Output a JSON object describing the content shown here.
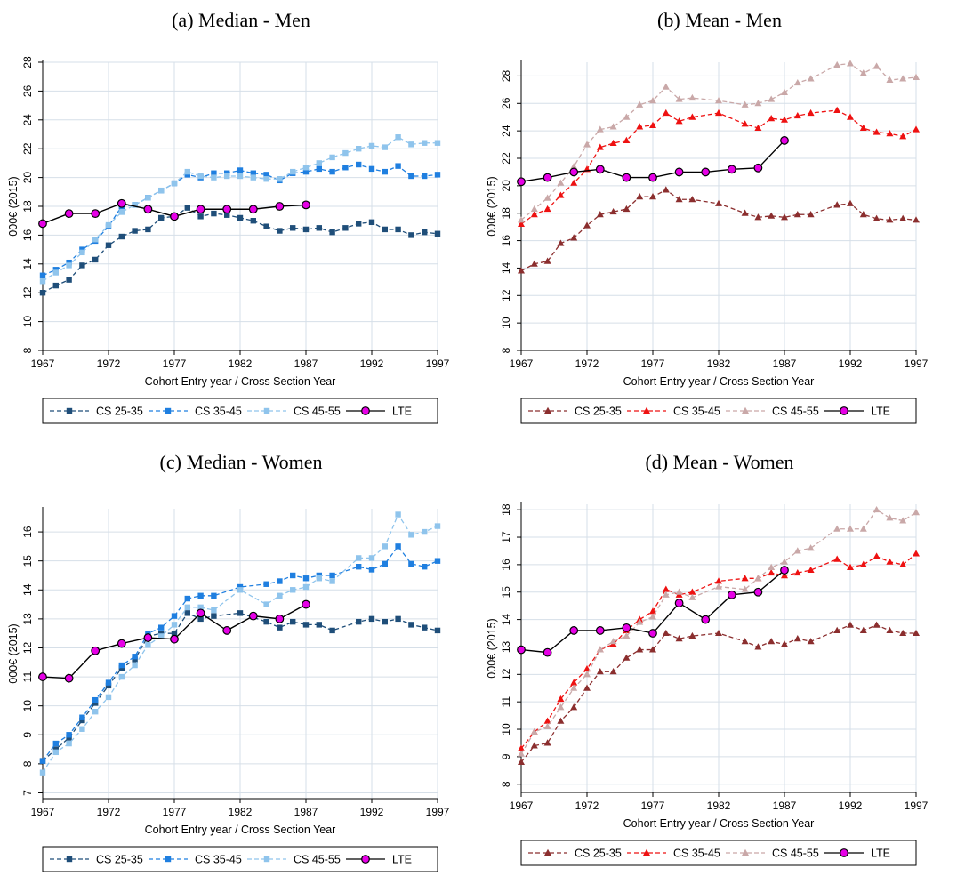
{
  "chart_data": [
    {
      "type": "line",
      "title": "(a) Median - Men",
      "xlabel": "Cohort Entry year / Cross Section Year",
      "ylabel": "000€ (2015)",
      "xlim": [
        1967,
        1997
      ],
      "ylim": [
        8,
        28
      ],
      "xticks": [
        1967,
        1972,
        1977,
        1982,
        1987,
        1992,
        1997
      ],
      "yticks": [
        8,
        10,
        12,
        14,
        16,
        18,
        20,
        22,
        24,
        26,
        28
      ],
      "grid": true,
      "legend_position": "bottom",
      "colors": {
        "CS 25-35": "#1f4e79",
        "CS 35-45": "#1f7fe0",
        "CS 45-55": "#8fc4ec",
        "LTE": "#000000",
        "LTE_fill": "#e600e6"
      },
      "series": [
        {
          "name": "CS 25-35",
          "marker": "square",
          "dash": true,
          "x": [
            1967,
            1968,
            1969,
            1970,
            1971,
            1972,
            1973,
            1974,
            1975,
            1976,
            1977,
            1978,
            1979,
            1980,
            1981,
            1982,
            1983,
            1984,
            1985,
            1986,
            1987,
            1988,
            1989,
            1990,
            1991,
            1992,
            1993,
            1994,
            1995,
            1996,
            1997
          ],
          "y": [
            12.0,
            12.5,
            12.9,
            13.9,
            14.3,
            15.3,
            15.9,
            16.3,
            16.4,
            17.2,
            17.3,
            17.9,
            17.3,
            17.5,
            17.4,
            17.2,
            17.0,
            16.6,
            16.3,
            16.5,
            16.4,
            16.5,
            16.2,
            16.5,
            16.8,
            16.9,
            16.4,
            16.4,
            16.0,
            16.2,
            16.1
          ]
        },
        {
          "name": "CS 35-45",
          "marker": "square",
          "dash": true,
          "x": [
            1967,
            1968,
            1969,
            1970,
            1971,
            1972,
            1973,
            1974,
            1975,
            1976,
            1977,
            1978,
            1979,
            1980,
            1981,
            1982,
            1983,
            1984,
            1985,
            1986,
            1987,
            1988,
            1989,
            1990,
            1991,
            1992,
            1993,
            1994,
            1995,
            1996,
            1997
          ],
          "y": [
            13.2,
            13.6,
            14.1,
            15.0,
            15.6,
            16.6,
            18.0,
            18.1,
            18.6,
            19.1,
            19.6,
            20.2,
            20.0,
            20.3,
            20.3,
            20.5,
            20.3,
            20.2,
            19.8,
            20.3,
            20.4,
            20.6,
            20.4,
            20.7,
            20.9,
            20.6,
            20.4,
            20.8,
            20.1,
            20.1,
            20.2
          ]
        },
        {
          "name": "CS 45-55",
          "marker": "square",
          "dash": true,
          "x": [
            1967,
            1968,
            1969,
            1970,
            1971,
            1972,
            1973,
            1974,
            1975,
            1976,
            1977,
            1978,
            1979,
            1980,
            1981,
            1982,
            1983,
            1984,
            1985,
            1986,
            1987,
            1988,
            1989,
            1990,
            1991,
            1992,
            1993,
            1994,
            1995,
            1996,
            1997
          ],
          "y": [
            12.8,
            13.4,
            13.9,
            14.8,
            15.7,
            16.7,
            17.6,
            18.1,
            18.6,
            19.1,
            19.6,
            20.4,
            20.1,
            20.0,
            20.1,
            20.1,
            20.0,
            19.9,
            19.9,
            20.4,
            20.7,
            21.0,
            21.4,
            21.7,
            22.0,
            22.2,
            22.1,
            22.8,
            22.3,
            22.4,
            22.4
          ]
        },
        {
          "name": "LTE",
          "marker": "circle",
          "dash": false,
          "x": [
            1967,
            1969,
            1971,
            1973,
            1975,
            1977,
            1979,
            1981,
            1983,
            1985,
            1987
          ],
          "y": [
            16.8,
            17.5,
            17.5,
            18.2,
            17.8,
            17.3,
            17.8,
            17.8,
            17.8,
            18.0,
            18.1
          ]
        }
      ]
    },
    {
      "type": "line",
      "title": "(b) Mean - Men",
      "xlabel": "Cohort Entry year / Cross Section Year",
      "ylabel": "000€ (2015)",
      "xlim": [
        1967,
        1997
      ],
      "ylim": [
        8,
        29
      ],
      "xticks": [
        1967,
        1972,
        1977,
        1982,
        1987,
        1992,
        1997
      ],
      "yticks": [
        8,
        10,
        12,
        14,
        16,
        18,
        20,
        22,
        24,
        26,
        28
      ],
      "grid": true,
      "legend_position": "bottom",
      "colors": {
        "CS 25-35": "#8b2e2e",
        "CS 35-45": "#ee1111",
        "CS 45-55": "#c9a8a8",
        "LTE": "#000000",
        "LTE_fill": "#e600e6"
      },
      "series": [
        {
          "name": "CS 25-35",
          "marker": "triangle",
          "dash": true,
          "x": [
            1967,
            1968,
            1969,
            1970,
            1971,
            1972,
            1973,
            1974,
            1975,
            1976,
            1977,
            1978,
            1979,
            1980,
            1982,
            1984,
            1985,
            1986,
            1987,
            1988,
            1989,
            1991,
            1992,
            1993,
            1994,
            1995,
            1996,
            1997
          ],
          "y": [
            13.8,
            14.3,
            14.5,
            15.8,
            16.2,
            17.1,
            17.9,
            18.1,
            18.3,
            19.2,
            19.2,
            19.7,
            19.0,
            19.0,
            18.7,
            18.0,
            17.7,
            17.8,
            17.7,
            17.9,
            17.9,
            18.6,
            18.7,
            17.9,
            17.6,
            17.5,
            17.6,
            17.5
          ]
        },
        {
          "name": "CS 35-45",
          "marker": "triangle",
          "dash": true,
          "x": [
            1967,
            1968,
            1969,
            1970,
            1971,
            1972,
            1973,
            1974,
            1975,
            1976,
            1977,
            1978,
            1979,
            1980,
            1982,
            1984,
            1985,
            1986,
            1987,
            1988,
            1989,
            1991,
            1992,
            1993,
            1994,
            1995,
            1996,
            1997
          ],
          "y": [
            17.2,
            17.9,
            18.3,
            19.3,
            20.2,
            21.2,
            22.8,
            23.1,
            23.3,
            24.3,
            24.4,
            25.3,
            24.7,
            25.0,
            25.3,
            24.5,
            24.2,
            24.9,
            24.8,
            25.1,
            25.3,
            25.5,
            25.0,
            24.2,
            23.9,
            23.8,
            23.6,
            24.1
          ]
        },
        {
          "name": "CS 45-55",
          "marker": "triangle",
          "dash": true,
          "x": [
            1967,
            1968,
            1969,
            1970,
            1971,
            1972,
            1973,
            1974,
            1975,
            1976,
            1977,
            1978,
            1979,
            1980,
            1982,
            1984,
            1985,
            1986,
            1987,
            1988,
            1989,
            1991,
            1992,
            1993,
            1994,
            1995,
            1996,
            1997
          ],
          "y": [
            17.5,
            18.3,
            19.1,
            20.2,
            21.4,
            23.0,
            24.1,
            24.3,
            25.0,
            25.9,
            26.2,
            27.2,
            26.3,
            26.4,
            26.2,
            25.9,
            26.0,
            26.3,
            26.8,
            27.5,
            27.8,
            28.8,
            28.9,
            28.2,
            28.7,
            27.7,
            27.8,
            27.9
          ]
        },
        {
          "name": "LTE",
          "marker": "circle",
          "dash": false,
          "x": [
            1967,
            1969,
            1971,
            1973,
            1975,
            1977,
            1979,
            1981,
            1983,
            1985,
            1987
          ],
          "y": [
            20.3,
            20.6,
            21.0,
            21.2,
            20.6,
            20.6,
            21.0,
            21.0,
            21.2,
            21.3,
            23.3
          ]
        }
      ]
    },
    {
      "type": "line",
      "title": "(c) Median - Women",
      "xlabel": "Cohort Entry year / Cross Section Year",
      "ylabel": "000€ (2015)",
      "xlim": [
        1967,
        1997
      ],
      "ylim": [
        6.8,
        16.8
      ],
      "xticks": [
        1967,
        1972,
        1977,
        1982,
        1987,
        1992,
        1997
      ],
      "yticks": [
        7,
        8,
        9,
        10,
        11,
        12,
        13,
        14,
        15,
        16
      ],
      "grid": true,
      "legend_position": "bottom",
      "colors": {
        "CS 25-35": "#1f4e79",
        "CS 35-45": "#1f7fe0",
        "CS 45-55": "#8fc4ec",
        "LTE": "#000000",
        "LTE_fill": "#e600e6"
      },
      "series": [
        {
          "name": "CS 25-35",
          "marker": "square",
          "dash": true,
          "x": [
            1967,
            1968,
            1969,
            1970,
            1971,
            1972,
            1973,
            1974,
            1975,
            1976,
            1977,
            1978,
            1979,
            1980,
            1982,
            1984,
            1985,
            1986,
            1987,
            1988,
            1989,
            1991,
            1992,
            1993,
            1994,
            1995,
            1996,
            1997
          ],
          "y": [
            8.1,
            8.5,
            8.9,
            9.5,
            10.1,
            10.7,
            11.3,
            11.6,
            12.4,
            12.5,
            12.5,
            13.2,
            13.0,
            13.1,
            13.2,
            12.9,
            12.7,
            12.9,
            12.8,
            12.8,
            12.6,
            12.9,
            13.0,
            12.9,
            13.0,
            12.8,
            12.7,
            12.6
          ]
        },
        {
          "name": "CS 35-45",
          "marker": "square",
          "dash": true,
          "x": [
            1967,
            1968,
            1969,
            1970,
            1971,
            1972,
            1973,
            1974,
            1975,
            1976,
            1977,
            1978,
            1979,
            1980,
            1982,
            1984,
            1985,
            1986,
            1987,
            1988,
            1989,
            1991,
            1992,
            1993,
            1994,
            1995,
            1996,
            1997
          ],
          "y": [
            8.1,
            8.7,
            9.0,
            9.6,
            10.2,
            10.8,
            11.4,
            11.7,
            12.5,
            12.7,
            13.1,
            13.7,
            13.8,
            13.8,
            14.1,
            14.2,
            14.3,
            14.5,
            14.4,
            14.5,
            14.5,
            14.8,
            14.7,
            14.9,
            15.5,
            14.9,
            14.8,
            15.0
          ]
        },
        {
          "name": "CS 45-55",
          "marker": "square",
          "dash": true,
          "x": [
            1967,
            1968,
            1969,
            1970,
            1971,
            1972,
            1973,
            1974,
            1975,
            1976,
            1977,
            1978,
            1979,
            1980,
            1982,
            1984,
            1985,
            1986,
            1987,
            1988,
            1989,
            1991,
            1992,
            1993,
            1994,
            1995,
            1996,
            1997
          ],
          "y": [
            7.7,
            8.4,
            8.7,
            9.2,
            9.8,
            10.3,
            11.0,
            11.4,
            12.1,
            12.4,
            12.8,
            13.4,
            13.4,
            13.3,
            14.0,
            13.5,
            13.8,
            14.0,
            14.1,
            14.4,
            14.3,
            15.1,
            15.1,
            15.5,
            16.6,
            15.9,
            16.0,
            16.2
          ]
        },
        {
          "name": "LTE",
          "marker": "circle",
          "dash": false,
          "x": [
            1967,
            1969,
            1971,
            1973,
            1975,
            1977,
            1979,
            1981,
            1983,
            1985,
            1987
          ],
          "y": [
            11.0,
            10.95,
            11.9,
            12.15,
            12.35,
            12.3,
            13.2,
            12.6,
            13.1,
            13.0,
            13.5
          ]
        }
      ]
    },
    {
      "type": "line",
      "title": "(d) Mean - Women",
      "xlabel": "Cohort Entry year / Cross Section Year",
      "ylabel": "000€ (2015)",
      "xlim": [
        1967,
        1997
      ],
      "ylim": [
        7.7,
        18.2
      ],
      "xticks": [
        1967,
        1972,
        1977,
        1982,
        1987,
        1992,
        1997
      ],
      "yticks": [
        8,
        9,
        10,
        11,
        12,
        13,
        14,
        15,
        16,
        17,
        18
      ],
      "grid": true,
      "legend_position": "bottom",
      "colors": {
        "CS 25-35": "#8b2e2e",
        "CS 35-45": "#ee1111",
        "CS 45-55": "#c9a8a8",
        "LTE": "#000000",
        "LTE_fill": "#e600e6"
      },
      "series": [
        {
          "name": "CS 25-35",
          "marker": "triangle",
          "dash": true,
          "x": [
            1967,
            1968,
            1969,
            1970,
            1971,
            1972,
            1973,
            1974,
            1975,
            1976,
            1977,
            1978,
            1979,
            1980,
            1982,
            1984,
            1985,
            1986,
            1987,
            1988,
            1989,
            1991,
            1992,
            1993,
            1994,
            1995,
            1996,
            1997
          ],
          "y": [
            8.8,
            9.4,
            9.5,
            10.3,
            10.8,
            11.5,
            12.1,
            12.1,
            12.6,
            12.9,
            12.9,
            13.5,
            13.3,
            13.4,
            13.5,
            13.2,
            13.0,
            13.2,
            13.1,
            13.3,
            13.2,
            13.6,
            13.8,
            13.6,
            13.8,
            13.6,
            13.5,
            13.5
          ]
        },
        {
          "name": "CS 35-45",
          "marker": "triangle",
          "dash": true,
          "x": [
            1967,
            1968,
            1969,
            1970,
            1971,
            1972,
            1973,
            1974,
            1975,
            1976,
            1977,
            1978,
            1979,
            1980,
            1982,
            1984,
            1985,
            1986,
            1987,
            1988,
            1989,
            1991,
            1992,
            1993,
            1994,
            1995,
            1996,
            1997
          ],
          "y": [
            9.3,
            9.9,
            10.3,
            11.1,
            11.7,
            12.2,
            12.9,
            13.1,
            13.6,
            14.0,
            14.3,
            15.1,
            14.9,
            15.0,
            15.4,
            15.5,
            15.5,
            15.7,
            15.6,
            15.7,
            15.8,
            16.2,
            15.9,
            16.0,
            16.3,
            16.1,
            16.0,
            16.4
          ]
        },
        {
          "name": "CS 45-55",
          "marker": "triangle",
          "dash": true,
          "x": [
            1967,
            1968,
            1969,
            1970,
            1971,
            1972,
            1973,
            1974,
            1975,
            1976,
            1977,
            1978,
            1979,
            1980,
            1982,
            1984,
            1985,
            1986,
            1987,
            1988,
            1989,
            1991,
            1992,
            1993,
            1994,
            1995,
            1996,
            1997
          ],
          "y": [
            9.1,
            9.9,
            10.1,
            10.8,
            11.5,
            12.0,
            12.9,
            13.2,
            13.4,
            13.9,
            14.1,
            14.9,
            15.0,
            14.8,
            15.2,
            15.1,
            15.5,
            15.9,
            16.1,
            16.5,
            16.6,
            17.3,
            17.3,
            17.3,
            18.0,
            17.7,
            17.6,
            17.9
          ]
        },
        {
          "name": "LTE",
          "marker": "circle",
          "dash": false,
          "x": [
            1967,
            1969,
            1971,
            1973,
            1975,
            1977,
            1979,
            1981,
            1983,
            1985,
            1987
          ],
          "y": [
            12.9,
            12.8,
            13.6,
            13.6,
            13.7,
            13.5,
            14.6,
            14.0,
            14.9,
            15.0,
            15.8
          ]
        }
      ]
    }
  ]
}
